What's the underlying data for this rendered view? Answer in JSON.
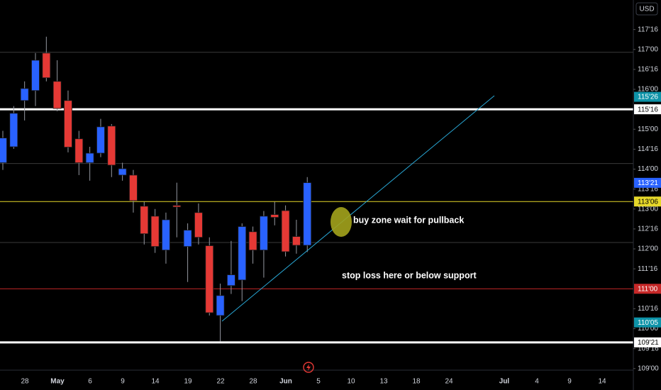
{
  "chart_data": {
    "type": "candlestick",
    "currency": "USD",
    "ylim": [
      108.96,
      118.24
    ],
    "yticks": [
      {
        "value": 117.5,
        "label": "117'16"
      },
      {
        "value": 117,
        "label": "117'00"
      },
      {
        "value": 116.5,
        "label": "116'16"
      },
      {
        "value": 116,
        "label": "116'00"
      },
      {
        "value": 115,
        "label": "115'00"
      },
      {
        "value": 114.5,
        "label": "114'16"
      },
      {
        "value": 114,
        "label": "114'00"
      },
      {
        "value": 113.5,
        "label": "113'16"
      },
      {
        "value": 113,
        "label": "113'00"
      },
      {
        "value": 112.5,
        "label": "112'16"
      },
      {
        "value": 112,
        "label": "112'00"
      },
      {
        "value": 111.5,
        "label": "111'16"
      },
      {
        "value": 110.5,
        "label": "110'16"
      },
      {
        "value": 110,
        "label": "110'00"
      },
      {
        "value": 109.5,
        "label": "109'16"
      },
      {
        "value": 109,
        "label": "109'00"
      }
    ],
    "x_labels": [
      "28",
      "May",
      "6",
      "9",
      "14",
      "19",
      "22",
      "28",
      "Jun",
      "5",
      "10",
      "13",
      "18",
      "24",
      "Jul",
      "4",
      "9",
      "14"
    ],
    "up_color": "#2962ff",
    "down_color": "#e53935",
    "open": [
      114.16,
      114.56,
      115.72,
      115.97,
      116.91,
      116.2,
      115.72,
      114.76,
      114.16,
      114.4,
      115.08,
      113.85,
      113.85,
      113.07,
      112.82,
      111.97,
      113.09,
      112.06,
      112.91,
      112.08,
      110.33,
      111.08,
      111.22,
      112.43,
      111.97,
      112.86,
      112.96,
      112.31,
      112.09
    ],
    "high": [
      114.96,
      115.58,
      116.2,
      116.91,
      117.32,
      116.73,
      115.97,
      114.96,
      114.56,
      115.26,
      115.13,
      114.16,
      113.98,
      113.18,
      113.0,
      112.91,
      113.66,
      112.64,
      113.14,
      112.29,
      111.13,
      112.2,
      112.64,
      112.56,
      112.95,
      113.18,
      113.09,
      112.73,
      113.8
    ],
    "low": [
      113.98,
      114.51,
      115.22,
      115.58,
      116.2,
      115.45,
      114.42,
      113.85,
      113.71,
      114.3,
      113.8,
      113.71,
      112.91,
      112.11,
      111.9,
      111.63,
      112.29,
      111.17,
      112.11,
      110.33,
      109.68,
      110.87,
      110.69,
      111.63,
      111.28,
      112.59,
      111.81,
      111.88,
      111.92
    ],
    "close": [
      114.78,
      115.4,
      116.02,
      116.73,
      116.29,
      115.52,
      114.55,
      114.16,
      114.4,
      115.06,
      114.1,
      114.01,
      113.21,
      112.38,
      112.06,
      112.73,
      113.05,
      112.47,
      112.29,
      110.4,
      110.83,
      111.35,
      112.56,
      111.97,
      112.82,
      112.79,
      111.93,
      112.09,
      113.66
    ],
    "horizontal_lines": [
      {
        "value": 116.93,
        "color": "#3a3a3a",
        "width": 1
      },
      {
        "value": 115.5,
        "color": "#ffffff",
        "width": 3
      },
      {
        "value": 114.14,
        "color": "#3a3a3a",
        "width": 1
      },
      {
        "value": 113.1875,
        "color": "#e6d82a",
        "width": 1
      },
      {
        "value": 112.16,
        "color": "#3a3a3a",
        "width": 1
      },
      {
        "value": 111,
        "color": "#c62828",
        "width": 1
      },
      {
        "value": 109.65625,
        "color": "#ffffff",
        "width": 3
      }
    ],
    "price_labels": [
      {
        "value": 115.8125,
        "label": "115'26",
        "color": "#0e93a8",
        "text_color": "#ffffff"
      },
      {
        "value": 115.5,
        "label": "115'16",
        "color": "#ffffff",
        "text_color": "#000000"
      },
      {
        "value": 113.65625,
        "label": "113'21",
        "color": "#2962ff",
        "text_color": "#ffffff"
      },
      {
        "value": 113.1875,
        "label": "113'06",
        "color": "#e6d82a",
        "text_color": "#000000"
      },
      {
        "value": 111,
        "label": "111'00",
        "color": "#c62828",
        "text_color": "#ffffff"
      },
      {
        "value": 110.15625,
        "label": "110'05",
        "color": "#0e93a8",
        "text_color": "#ffffff"
      },
      {
        "value": 109.65625,
        "label": "109'21",
        "color": "#ffffff",
        "text_color": "#000000"
      }
    ],
    "annotations": [
      "buy zone wait for pullback",
      "stop loss here or below support"
    ]
  }
}
